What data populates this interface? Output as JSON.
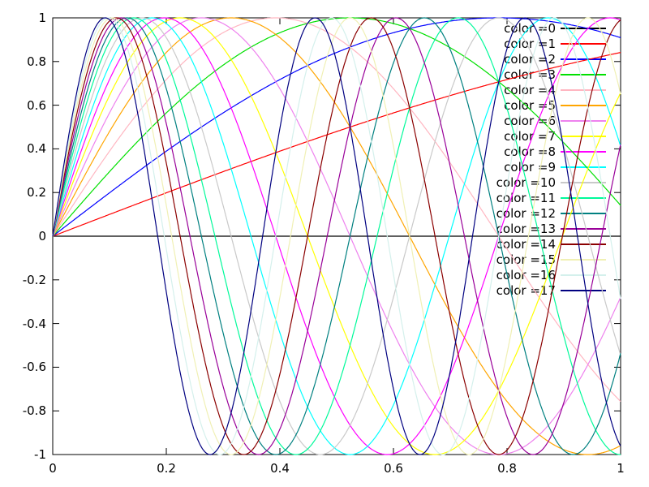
{
  "chart_data": {
    "type": "line",
    "title": "",
    "xlabel": "",
    "ylabel": "",
    "xlim": [
      0,
      1
    ],
    "ylim": [
      -1,
      1
    ],
    "grid": false,
    "border": true,
    "tick_style": "inward, mirrored on top and right borders",
    "formula": "y = sin(n * x), x in [0,1], one curve per n",
    "x_ticks": [
      {
        "v": 0,
        "label": "0"
      },
      {
        "v": 0.2,
        "label": "0.2"
      },
      {
        "v": 0.4,
        "label": "0.4"
      },
      {
        "v": 0.6,
        "label": "0.6"
      },
      {
        "v": 0.8,
        "label": "0.8"
      },
      {
        "v": 1,
        "label": "1"
      }
    ],
    "y_ticks": [
      {
        "v": 1,
        "label": "1"
      },
      {
        "v": 0.8,
        "label": "0.8"
      },
      {
        "v": 0.6,
        "label": "0.6"
      },
      {
        "v": 0.4,
        "label": "0.4"
      },
      {
        "v": 0.2,
        "label": "0.2"
      },
      {
        "v": 0,
        "label": "0"
      },
      {
        "v": -0.2,
        "label": "-0.2"
      },
      {
        "v": -0.4,
        "label": "-0.4"
      },
      {
        "v": -0.6,
        "label": "-0.6"
      },
      {
        "v": -0.8,
        "label": "-0.8"
      },
      {
        "v": -1,
        "label": "-1"
      }
    ],
    "legend": {
      "position": "top-right inside plot",
      "sample_side": "right-of-text"
    },
    "series": [
      {
        "label": "color =0",
        "n": 0,
        "color": "#000000"
      },
      {
        "label": "color =1",
        "n": 1,
        "color": "#ff0000"
      },
      {
        "label": "color =2",
        "n": 2,
        "color": "#0000ff"
      },
      {
        "label": "color =3",
        "n": 3,
        "color": "#00e000"
      },
      {
        "label": "color =4",
        "n": 4,
        "color": "#ffb6c1"
      },
      {
        "label": "color =5",
        "n": 5,
        "color": "#ffa500"
      },
      {
        "label": "color =6",
        "n": 6,
        "color": "#ee82ee"
      },
      {
        "label": "color =7",
        "n": 7,
        "color": "#ffff00"
      },
      {
        "label": "color =8",
        "n": 8,
        "color": "#ff00ff"
      },
      {
        "label": "color =9",
        "n": 9,
        "color": "#00ffff"
      },
      {
        "label": "color =10",
        "n": 10,
        "color": "#c9c9c9"
      },
      {
        "label": "color =11",
        "n": 11,
        "color": "#00fa9a"
      },
      {
        "label": "color =12",
        "n": 12,
        "color": "#008080"
      },
      {
        "label": "color =13",
        "n": 13,
        "color": "#990099"
      },
      {
        "label": "color =14",
        "n": 14,
        "color": "#8b0000"
      },
      {
        "label": "color =15",
        "n": 15,
        "color": "#f0f0b4"
      },
      {
        "label": "color =16",
        "n": 16,
        "color": "#d4f0ec"
      },
      {
        "label": "color =17",
        "n": 17,
        "color": "#000080"
      }
    ],
    "colors": {
      "border": "#000000",
      "background": "#ffffff",
      "text": "#000000"
    }
  }
}
